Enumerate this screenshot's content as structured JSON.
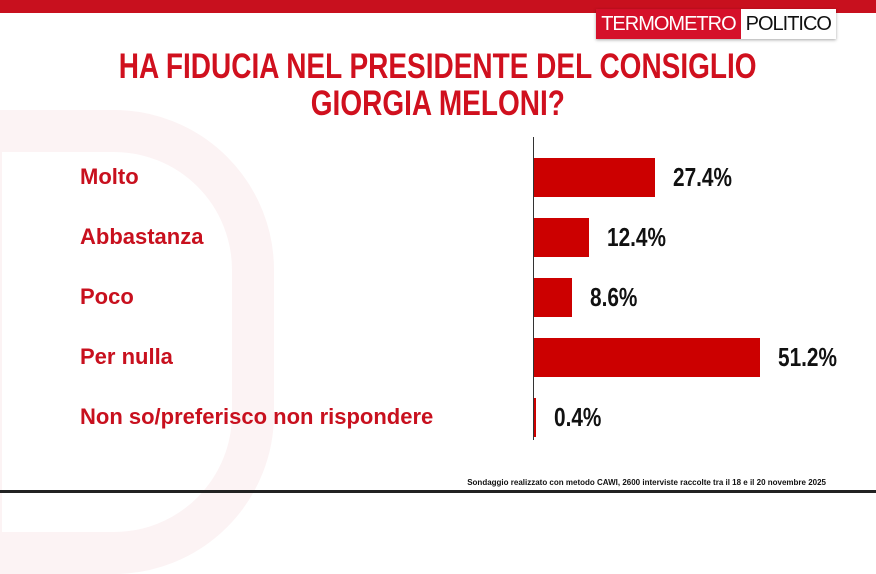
{
  "logo": {
    "part1": "TERMOMETRO",
    "part2": "POLITICO"
  },
  "chart_data": {
    "type": "bar",
    "orientation": "horizontal",
    "title": "HA FIDUCIA NEL PRESIDENTE DEL CONSIGLIO GIORGIA MELONI?",
    "title_lines": [
      "HA FIDUCIA NEL PRESIDENTE DEL CONSIGLIO",
      "GIORGIA MELONI?"
    ],
    "categories": [
      "Molto",
      "Abbastanza",
      "Poco",
      "Per nulla",
      "Non so/preferisco non rispondere"
    ],
    "values": [
      27.4,
      12.4,
      8.6,
      51.2,
      0.4
    ],
    "value_labels": [
      "27.4%",
      "12.4%",
      "8.6%",
      "51.2%",
      "0.4%"
    ],
    "bar_color": "#cc0000",
    "grid": false
  },
  "footer": "Sondaggio realizzato con metodo CAWI, 2600 interviste raccolte tra il 18 e il 20 novembre  2025",
  "colors": {
    "accent": "#c8101e"
  }
}
